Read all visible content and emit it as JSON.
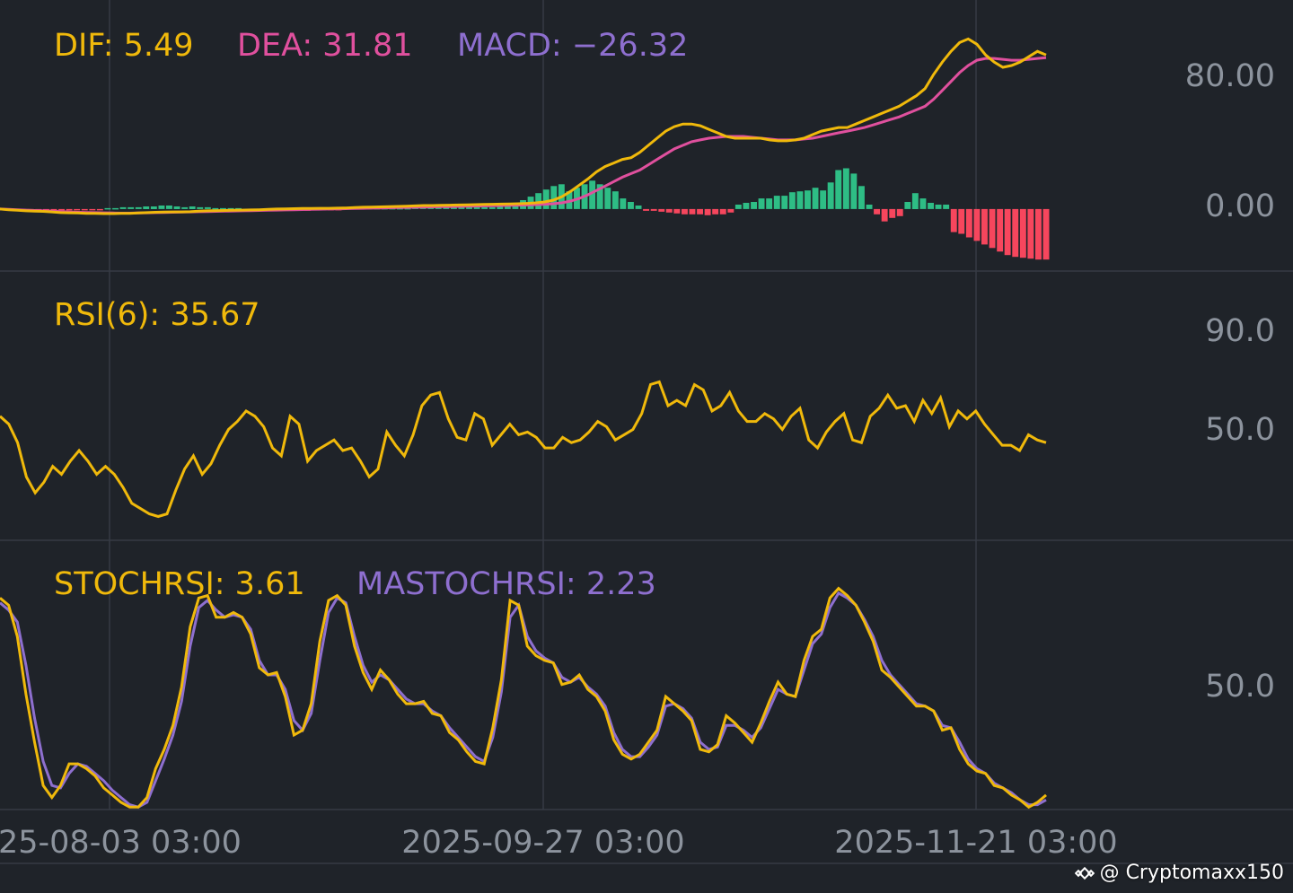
{
  "colors": {
    "background": "#1f2329",
    "grid": "#363b44",
    "tick_text": "#8c939d",
    "dif": "#f0b90b",
    "dea": "#e0509e",
    "macd_label": "#8e6fcf",
    "hist_up": "#2ebd85",
    "hist_down": "#f6465d",
    "rsi": "#f0b90b",
    "stochrsi": "#f0b90b",
    "mastochrsi": "#8e6fcf"
  },
  "watermark": {
    "icon": "binance-diamond-icon",
    "text": "@ Cryptomaxx150"
  },
  "chart_data": [
    {
      "type": "line",
      "panel": "MACD",
      "title_parts": [
        {
          "label": "DIF: 5.49",
          "color": "#f0b90b"
        },
        {
          "label": "DEA: 31.81",
          "color": "#e0509e"
        },
        {
          "label": "MACD: −26.32",
          "color": "#8e6fcf"
        }
      ],
      "ylim": [
        -35,
        118
      ],
      "y_ticks": [
        {
          "value": 80,
          "label": "80.00"
        },
        {
          "value": 0,
          "label": "0.00"
        }
      ],
      "n_points": 122,
      "series": [
        {
          "name": "DIF",
          "color": "#f0b90b",
          "values": [
            0,
            -0.4,
            -0.7,
            -1,
            -1.2,
            -1.3,
            -1.6,
            -2,
            -2.1,
            -2.2,
            -2.4,
            -2.5,
            -2.6,
            -2.6,
            -2.5,
            -2.5,
            -2.2,
            -2,
            -1.8,
            -1.7,
            -1.6,
            -1.6,
            -1.5,
            -1.2,
            -1,
            -0.9,
            -0.8,
            -0.7,
            -0.6,
            -0.5,
            -0.4,
            -0.2,
            0,
            0.1,
            0.2,
            0.3,
            0.3,
            0.4,
            0.4,
            0.5,
            0.6,
            0.8,
            1,
            1.1,
            1.2,
            1.3,
            1.5,
            1.6,
            1.8,
            2,
            2,
            2.1,
            2.2,
            2.3,
            2.4,
            2.5,
            2.6,
            2.7,
            2.8,
            2.9,
            3,
            3.2,
            3.5,
            4,
            5,
            7,
            10,
            13.5,
            17,
            21,
            24,
            26,
            28,
            29,
            32,
            36,
            40,
            44,
            46.5,
            48,
            48,
            47,
            45,
            43,
            41,
            40,
            40,
            40,
            40,
            39,
            38.5,
            38.5,
            39,
            40,
            42,
            44,
            45,
            46,
            46,
            48,
            50,
            52,
            54,
            56,
            58,
            61,
            64,
            68,
            76,
            83,
            89,
            94,
            96,
            93,
            87,
            83,
            80,
            81,
            83,
            86,
            89,
            87
          ]
        },
        {
          "name": "DEA",
          "color": "#e0509e",
          "values": [
            0,
            -0.2,
            -0.4,
            -0.6,
            -0.8,
            -1,
            -1.2,
            -1.4,
            -1.6,
            -1.8,
            -1.9,
            -2,
            -2.1,
            -2.2,
            -2.3,
            -2.3,
            -2.2,
            -2.1,
            -2,
            -1.9,
            -1.8,
            -1.7,
            -1.6,
            -1.5,
            -1.4,
            -1.3,
            -1.2,
            -1.1,
            -1,
            -0.9,
            -0.8,
            -0.7,
            -0.6,
            -0.5,
            -0.4,
            -0.3,
            -0.2,
            -0.1,
            0,
            0.1,
            0.2,
            0.3,
            0.4,
            0.5,
            0.6,
            0.7,
            0.8,
            0.9,
            1,
            1.1,
            1.2,
            1.3,
            1.4,
            1.5,
            1.6,
            1.7,
            1.8,
            1.9,
            2,
            2.1,
            2.2,
            2.3,
            2.5,
            2.7,
            3,
            3.5,
            4.5,
            6,
            8,
            10.5,
            13,
            15.5,
            18,
            20,
            22,
            25,
            28,
            31,
            34,
            36,
            38,
            39,
            40,
            40.5,
            41,
            41,
            41,
            40.5,
            40,
            39.5,
            39,
            39,
            39,
            39.5,
            40,
            41,
            42,
            43,
            44,
            45,
            46,
            47.5,
            49,
            50.5,
            52,
            54,
            56,
            58,
            62,
            67,
            72,
            77,
            81,
            84,
            85,
            85,
            84.5,
            84,
            84,
            84.5,
            85,
            85.5
          ]
        },
        {
          "name": "MACD",
          "type": "bar",
          "values": [
            0,
            -0.5,
            -0.5,
            -1,
            -1,
            -0.5,
            -1,
            -1,
            -0.5,
            -0.5,
            -0.5,
            -0.5,
            -0.5,
            -0.5,
            0.5,
            0.5,
            1,
            1,
            1,
            1.5,
            1.5,
            2,
            2,
            1.5,
            1,
            1.5,
            1,
            1,
            0.5,
            0.5,
            0.5,
            0.5,
            0,
            -0.5,
            -0.5,
            -0.5,
            -0.5,
            -0.5,
            -1,
            -1,
            -1,
            -0.5,
            -0.5,
            -0.5,
            -0.5,
            0.5,
            0.5,
            0.5,
            0.5,
            0.5,
            0.5,
            0.5,
            0.5,
            0.5,
            1,
            1,
            1,
            1,
            1,
            1,
            1,
            1,
            1,
            1,
            1,
            1.5,
            2,
            3,
            5,
            7,
            9,
            11,
            13,
            14,
            10,
            12,
            14,
            16,
            14,
            12,
            10,
            6,
            4,
            2,
            -1,
            -1,
            -1.5,
            -2,
            -2.5,
            -3,
            -3,
            -3,
            -3.5,
            -3,
            -3,
            -2,
            2.5,
            3.5,
            4,
            6,
            6,
            7.5,
            7.5,
            9.5,
            10,
            10.5,
            12,
            10.5,
            15,
            22,
            23,
            20,
            13,
            2.5,
            -3,
            -7,
            -5,
            -4,
            4,
            9,
            6,
            3.5,
            2.5,
            2.5
          ]
        },
        {
          "name": "MACD",
          "type": "bar",
          "values": [
            -13,
            -14,
            -16,
            -18,
            -20,
            -22,
            -24,
            -26,
            -27,
            -27.5,
            -28,
            -28.5,
            -28.5
          ]
        }
      ]
    },
    {
      "type": "line",
      "panel": "RSI",
      "title_parts": [
        {
          "label": "RSI(6): 35.67",
          "color": "#f0b90b"
        }
      ],
      "ylim": [
        8,
        110
      ],
      "y_ticks": [
        {
          "value": 90,
          "label": "90.0"
        },
        {
          "value": 50,
          "label": "50.0"
        }
      ],
      "series": [
        {
          "name": "RSI(6)",
          "color": "#f0b90b",
          "values": [
            55,
            52,
            45,
            32,
            26,
            30,
            36,
            33,
            38,
            42,
            38,
            33,
            36,
            33,
            28,
            22,
            20,
            18,
            17,
            18,
            27,
            35,
            40,
            33,
            37,
            44,
            50,
            53,
            57,
            55,
            51,
            43,
            40,
            55,
            52,
            38,
            42,
            44,
            46,
            42,
            43,
            38,
            32,
            35,
            49,
            44,
            40,
            48,
            59,
            63,
            64,
            54,
            47,
            46,
            56,
            54,
            44,
            48,
            52,
            48,
            49,
            47,
            43,
            43,
            47,
            45,
            46,
            49,
            53,
            51,
            46,
            48,
            50,
            56,
            67,
            68,
            59,
            61,
            59,
            67,
            65,
            57,
            59,
            64,
            57,
            53,
            53,
            56,
            54,
            50,
            55,
            58,
            46,
            43,
            49,
            53,
            56,
            46,
            45,
            55,
            58,
            63,
            58,
            59,
            53,
            61,
            56,
            62,
            51,
            57,
            54,
            57,
            52,
            48,
            44,
            44,
            42,
            48,
            46,
            45
          ]
        }
      ]
    },
    {
      "type": "line",
      "panel": "STOCHRSI",
      "title_parts": [
        {
          "label": "STOCHRSI: 3.61",
          "color": "#f0b90b"
        },
        {
          "label": "MASTOCHRSI: 2.23",
          "color": "#8e6fcf"
        }
      ],
      "ylim": [
        0,
        112
      ],
      "y_ticks": [
        {
          "value": 50,
          "label": "50.0"
        }
      ],
      "series": [
        {
          "name": "STOCHRSI",
          "color": "#f0b90b",
          "values": [
            88,
            85,
            72,
            48,
            28,
            10,
            5,
            10,
            19,
            19,
            17,
            14,
            9,
            6,
            3,
            1,
            1,
            5,
            17,
            25,
            35,
            51,
            76,
            88,
            89,
            80,
            80,
            82,
            80,
            73,
            59,
            56,
            57,
            47,
            31,
            33,
            44,
            70,
            87,
            89,
            85,
            68,
            57,
            50,
            58,
            54,
            48,
            44,
            44,
            45,
            40,
            39,
            32,
            29,
            24,
            20,
            19,
            34,
            54,
            87,
            85,
            68,
            64,
            62,
            61,
            52,
            53,
            56,
            50,
            47,
            41,
            29,
            23,
            21,
            23,
            28,
            33,
            47,
            44,
            41,
            37,
            25,
            24,
            27,
            39,
            36,
            32,
            28,
            36,
            45,
            53,
            48,
            47,
            62,
            72,
            75,
            88,
            92,
            89,
            85,
            78,
            70,
            58,
            55,
            51,
            47,
            43,
            43,
            41,
            33,
            34,
            25,
            19,
            16,
            15,
            10,
            9,
            6,
            4,
            1,
            3,
            6
          ]
        },
        {
          "name": "MASTOCHRSI",
          "color": "#8e6fcf",
          "values": [
            86,
            83,
            78,
            60,
            38,
            20,
            10,
            9,
            15,
            19,
            18,
            15,
            12,
            8,
            5,
            2,
            1,
            3,
            12,
            21,
            31,
            45,
            68,
            84,
            87,
            83,
            80,
            81,
            80,
            75,
            62,
            56,
            56,
            50,
            37,
            33,
            40,
            62,
            82,
            88,
            86,
            72,
            60,
            53,
            56,
            54,
            50,
            46,
            44,
            44,
            41,
            39,
            34,
            30,
            26,
            22,
            20,
            30,
            49,
            80,
            85,
            72,
            66,
            63,
            61,
            55,
            53,
            55,
            51,
            48,
            43,
            32,
            25,
            22,
            22,
            26,
            31,
            43,
            44,
            42,
            38,
            28,
            25,
            26,
            35,
            35,
            33,
            30,
            34,
            42,
            50,
            48,
            47,
            58,
            69,
            73,
            84,
            90,
            88,
            85,
            79,
            72,
            62,
            56,
            52,
            48,
            44,
            43,
            41,
            35,
            34,
            28,
            21,
            17,
            15,
            11,
            9,
            7,
            4,
            2,
            2,
            4
          ]
        }
      ]
    }
  ],
  "x_axis": {
    "tick_labels": [
      "25-08-03 03:00",
      "2025-09-27 03:00",
      "2025-11-21 03:00"
    ]
  }
}
